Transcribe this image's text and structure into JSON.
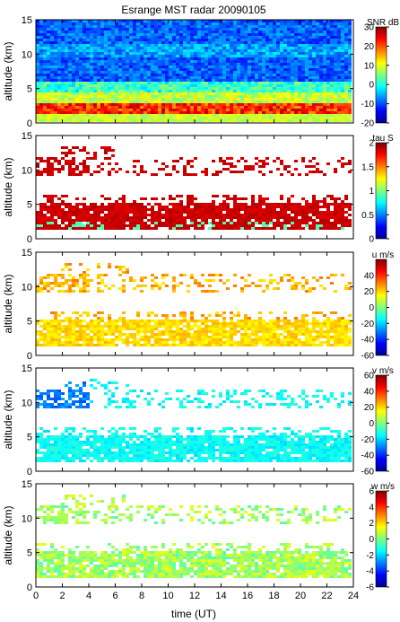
{
  "title": "Esrange MST radar 20090105",
  "xlabel": "time (UT)",
  "x_ticks": [
    "0",
    "2",
    "4",
    "6",
    "8",
    "10",
    "12",
    "14",
    "16",
    "18",
    "20",
    "22",
    "24"
  ],
  "chart_data": [
    {
      "type": "heatmap",
      "ylabel": "altitude (km)",
      "xlim": [
        0,
        24
      ],
      "ylim": [
        0,
        15
      ],
      "y_ticks": [
        "0",
        "5",
        "10",
        "15"
      ],
      "colorbar_title": "SNR dB",
      "colorbar_range": [
        -20,
        30
      ],
      "colorbar_ticks": [
        "30",
        "20",
        "10",
        "0",
        "-10",
        "-20"
      ],
      "colorbar_values": [
        30,
        20,
        10,
        0,
        -10,
        -20
      ]
    },
    {
      "type": "heatmap",
      "ylabel": "altitude (km)",
      "xlim": [
        0,
        24
      ],
      "ylim": [
        0,
        15
      ],
      "y_ticks": [
        "0",
        "5",
        "10",
        "15"
      ],
      "colorbar_title": "tau S",
      "colorbar_range": [
        0,
        2
      ],
      "colorbar_ticks": [
        "2",
        "1.5",
        "1",
        "0.5",
        "0"
      ],
      "colorbar_values": [
        2,
        1.5,
        1,
        0.5,
        0
      ]
    },
    {
      "type": "heatmap",
      "ylabel": "altitude (km)",
      "xlim": [
        0,
        24
      ],
      "ylim": [
        0,
        15
      ],
      "y_ticks": [
        "0",
        "5",
        "10",
        "15"
      ],
      "colorbar_title": "u m/s",
      "colorbar_range": [
        -60,
        60
      ],
      "colorbar_ticks": [
        "40",
        "20",
        "0",
        "-20",
        "-40",
        "-60"
      ],
      "colorbar_values": [
        40,
        20,
        0,
        -20,
        -40,
        -60
      ]
    },
    {
      "type": "heatmap",
      "ylabel": "altitude (km)",
      "xlim": [
        0,
        24
      ],
      "ylim": [
        0,
        15
      ],
      "y_ticks": [
        "0",
        "5",
        "10",
        "15"
      ],
      "colorbar_title": "v m/s",
      "colorbar_range": [
        -60,
        60
      ],
      "colorbar_ticks": [
        "60",
        "40",
        "20",
        "0",
        "-20",
        "-40",
        "-60"
      ],
      "colorbar_values": [
        60,
        40,
        20,
        0,
        -20,
        -40,
        -60
      ]
    },
    {
      "type": "heatmap",
      "ylabel": "altitude (km)",
      "xlim": [
        0,
        24
      ],
      "ylim": [
        0,
        15
      ],
      "y_ticks": [
        "0",
        "5",
        "10",
        "15"
      ],
      "colorbar_title": "w m/s",
      "colorbar_range": [
        -6,
        6
      ],
      "colorbar_ticks": [
        "6",
        "4",
        "2",
        "0",
        "-2",
        "-4",
        "-6"
      ],
      "colorbar_values": [
        6,
        4,
        2,
        0,
        -2,
        -4,
        -6
      ]
    }
  ]
}
